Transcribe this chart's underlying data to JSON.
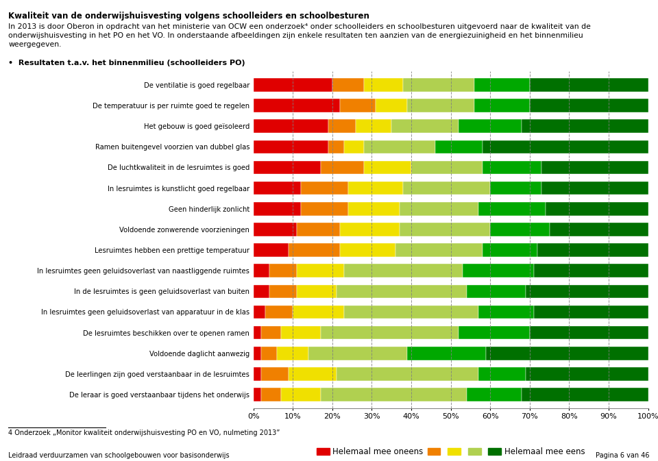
{
  "categories": [
    "De ventilatie is goed regelbaar",
    "De temperatuur is per ruimte goed te regelen",
    "Het gebouw is goed geïsoleerd",
    "Ramen buitengevel voorzien van dubbel glas",
    "De luchtkwaliteit in de lesruimtes is goed",
    "In lesruimtes is kunstlicht goed regelbaar",
    "Geen hinderlijk zonlicht",
    "Voldoende zonwerende voorzieningen",
    "Lesruimtes hebben een prettige temperatuur",
    "In lesruimtes geen geluidsoverlast van naastliggende ruimtes",
    "In de lesruimtes is geen geluidsoverlast van buiten",
    "In lesruimtes geen geluidsoverlast van apparatuur in de klas",
    "De lesruimtes beschikken over te openen ramen",
    "Voldoende daglicht aanwezig",
    "De leerlingen zijn goed verstaanbaar in de lesruimtes",
    "De leraar is goed verstaanbaar tijdens het onderwijs"
  ],
  "data": [
    [
      20,
      8,
      10,
      18,
      14,
      30
    ],
    [
      22,
      9,
      8,
      17,
      14,
      30
    ],
    [
      19,
      7,
      9,
      17,
      16,
      32
    ],
    [
      19,
      4,
      5,
      18,
      12,
      42
    ],
    [
      17,
      11,
      12,
      18,
      15,
      27
    ],
    [
      12,
      12,
      14,
      22,
      13,
      27
    ],
    [
      12,
      12,
      13,
      20,
      17,
      26
    ],
    [
      11,
      11,
      15,
      23,
      15,
      25
    ],
    [
      9,
      13,
      14,
      22,
      14,
      28
    ],
    [
      4,
      7,
      12,
      30,
      18,
      29
    ],
    [
      4,
      7,
      10,
      33,
      15,
      31
    ],
    [
      3,
      7,
      13,
      34,
      14,
      29
    ],
    [
      2,
      5,
      10,
      35,
      18,
      30
    ],
    [
      2,
      4,
      8,
      25,
      20,
      41
    ],
    [
      2,
      7,
      12,
      36,
      12,
      31
    ],
    [
      2,
      5,
      10,
      37,
      14,
      32
    ]
  ],
  "colors": [
    "#e00000",
    "#f08000",
    "#f0e000",
    "#b0d050",
    "#00a800",
    "#007000"
  ],
  "header_title": "Kwaliteit van de onderwijshuisvesting volgens schoolleiders en schoolbesturen",
  "header_body": "In 2013 is door Oberon in opdracht van het ministerie van OCW een onderzoek⁴ onder schoolleiders en schoolbesturen uitgevoerd naar de kwaliteit van de\nonderwijshuisvesting in het PO en het VO. In onderstaande afbeeldingen zijn enkele resultaten ten aanzien van de energiezuinigheid en het binnenmilieu\nweergegeven.",
  "bullet_text": "Resultaten t.a.v. het binnenmilieu (schoolleiders PO)",
  "footnote_label": "4",
  "footnote_text": "Onderzoek „Monitor kwaliteit onderwijshuisvesting PO en VO, nulmeting 2013”",
  "footer_left": "Leidraad verduurzamen van schoolgebouwen voor basisonderwijs",
  "footer_right": "Pagina 6 van 46",
  "legend_label1": "Helemaal mee oneens",
  "legend_label2": "Helemaal mee eens",
  "background_color": "#ffffff"
}
